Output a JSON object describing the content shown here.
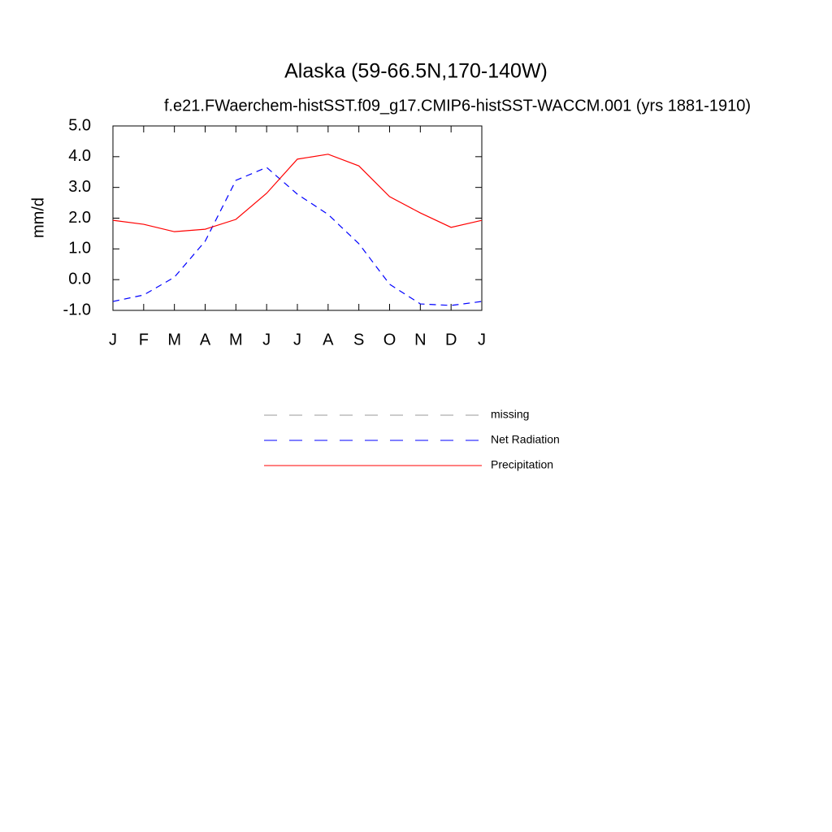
{
  "chart_data": {
    "type": "line",
    "title": "Alaska (59-66.5N,170-140W)",
    "subtitle": "f.e21.FWaerchem-histSST.f09_g17.CMIP6-histSST-WACCM.001 (yrs 1881-1910)",
    "y_label": "mm/d",
    "categories": [
      "J",
      "F",
      "M",
      "A",
      "M",
      "J",
      "J",
      "A",
      "S",
      "O",
      "N",
      "D",
      "J"
    ],
    "series": [
      {
        "name": "missing",
        "color": "#999999",
        "line_style": "dashed",
        "values": [
          null,
          null,
          null,
          null,
          null,
          null,
          null,
          null,
          null,
          null,
          null,
          null,
          null
        ]
      },
      {
        "name": "Net Radiation",
        "color": "#0000ff",
        "line_style": "dashed",
        "values": [
          -0.71,
          -0.5,
          0.08,
          1.25,
          3.23,
          3.65,
          2.78,
          2.12,
          1.17,
          -0.15,
          -0.79,
          -0.84,
          -0.71
        ]
      },
      {
        "name": "Precipitation",
        "color": "#ff0000",
        "line_style": "solid",
        "values": [
          1.93,
          1.8,
          1.56,
          1.64,
          1.96,
          2.81,
          3.92,
          4.08,
          3.7,
          2.7,
          2.17,
          1.7,
          1.93
        ]
      }
    ],
    "ylim": [
      -1,
      5
    ],
    "yticks": [
      {
        "value": -1,
        "label": "-1.0"
      },
      {
        "value": 0,
        "label": "0.0"
      },
      {
        "value": 1,
        "label": "1.0"
      },
      {
        "value": 2,
        "label": "2.0"
      },
      {
        "value": 3,
        "label": "3.0"
      },
      {
        "value": 4,
        "label": "4.0"
      },
      {
        "value": 5,
        "label": "5.0"
      }
    ]
  }
}
